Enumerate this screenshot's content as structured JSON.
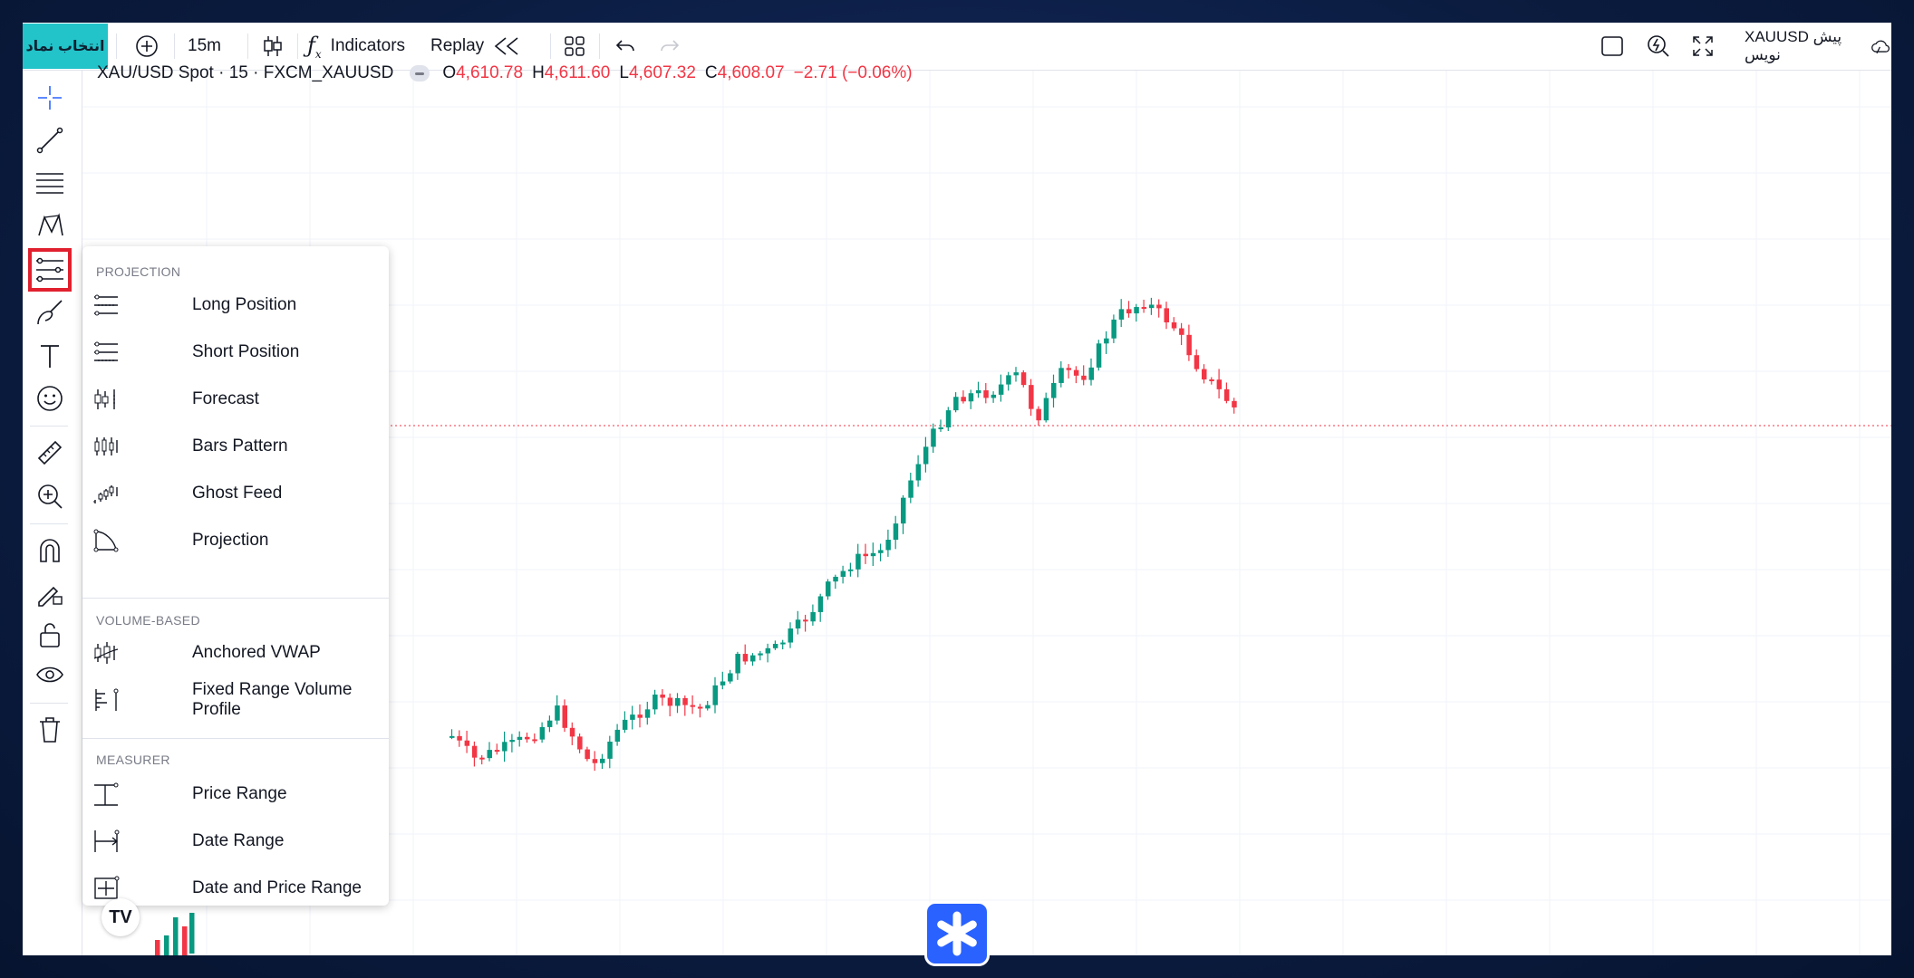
{
  "toolbar": {
    "symbol_select": "انتخاب نماد",
    "interval": "15m",
    "indicators": "Indicators",
    "replay": "Replay",
    "symbol_right": "XAUUSD پیش نویس"
  },
  "legend": {
    "title": "XAU/USD Spot · 15 · FXCM_XAUUSD",
    "o_label": "O",
    "o_value": "4,610.78",
    "h_label": "H",
    "h_value": "4,611.60",
    "l_label": "L",
    "l_value": "4,607.32",
    "c_label": "C",
    "c_value": "4,608.07",
    "change": "−2.71 (−0.06%)"
  },
  "menu": {
    "section1": "PROJECTION",
    "section1_items": [
      "Long Position",
      "Short Position",
      "Forecast",
      "Bars Pattern",
      "Ghost Feed",
      "Projection"
    ],
    "section2": "VOLUME-BASED",
    "section2_items": [
      "Anchored VWAP",
      "Fixed Range Volume Profile"
    ],
    "section3": "MEASURER",
    "section3_items": [
      "Price Range",
      "Date Range",
      "Date and Price Range"
    ]
  },
  "logo_text": "TV",
  "colors": {
    "up": "#089981",
    "down": "#f23645",
    "accent": "#22c3c9",
    "badge": "#2a62ff"
  },
  "chart_data": {
    "type": "candlestick",
    "series": [
      {
        "o": 0.7,
        "c": 0.5
      },
      {
        "o": 0.5,
        "c": 0.3
      },
      {
        "o": 0.3,
        "c": 0.9
      },
      {
        "o": 0.9,
        "c": 0.6
      },
      {
        "o": 0.6,
        "c": 0.4
      },
      {
        "o": 0.4,
        "c": 1.2
      },
      {
        "o": 1.2,
        "c": 1.0
      },
      {
        "o": 1.0,
        "c": 0.7
      }
    ]
  }
}
